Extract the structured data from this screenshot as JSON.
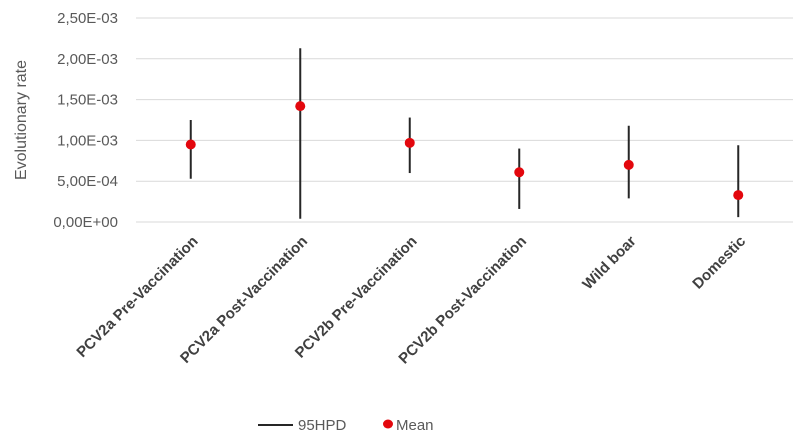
{
  "chart_data": {
    "type": "scatter",
    "title": "",
    "xlabel": "",
    "ylabel": "Evolutionary rate",
    "ylim": [
      0,
      0.0025
    ],
    "yticks": [
      0,
      0.0005,
      0.001,
      0.0015,
      0.002,
      0.0025
    ],
    "ytick_labels": [
      "0,00E+00",
      "5,00E-04",
      "1,00E-03",
      "1,50E-03",
      "2,00E-03",
      "2,50E-03"
    ],
    "grid": true,
    "legend_position": "bottom",
    "categories": [
      "PCV2a Pre-Vaccination",
      "PCV2a Post-Vaccination",
      "PCV2b Pre-Vaccination",
      "PCV2b Post-Vaccination",
      "Wild boar",
      "Domestic"
    ],
    "series": [
      {
        "name": "Mean",
        "color": "#e3070d",
        "values": [
          0.00095,
          0.00142,
          0.00097,
          0.00061,
          0.0007,
          0.00033
        ]
      },
      {
        "name": "95HPD",
        "color": "#262626",
        "lower": [
          0.00053,
          4e-05,
          0.0006,
          0.00016,
          0.00029,
          6e-05
        ],
        "upper": [
          0.00125,
          0.00213,
          0.00128,
          0.0009,
          0.00118,
          0.00094
        ]
      }
    ]
  }
}
